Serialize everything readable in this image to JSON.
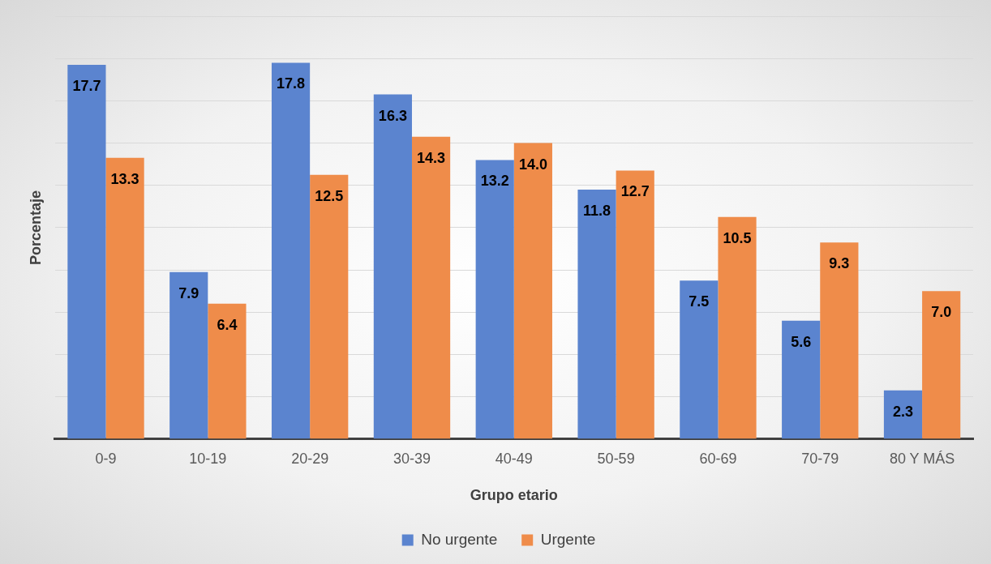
{
  "chart_data": {
    "type": "bar",
    "xlabel": "Grupo etario",
    "ylabel": "Porcentaje",
    "categories": [
      "0-9",
      "10-19",
      "20-29",
      "30-39",
      "40-49",
      "50-59",
      "60-69",
      "70-79",
      "80 Y MÁS"
    ],
    "series": [
      {
        "name": "No urgente",
        "color": "#5b84cf",
        "values": [
          17.7,
          7.9,
          17.8,
          16.3,
          13.2,
          11.8,
          7.5,
          5.6,
          2.3
        ],
        "value_labels": [
          "17.7",
          "7.9",
          "17.8",
          "16.3",
          "13.2",
          "11.8",
          "7.5",
          "5.6",
          "2.3"
        ]
      },
      {
        "name": "Urgente",
        "color": "#ef8c4a",
        "values": [
          13.3,
          6.4,
          12.5,
          14.3,
          14.0,
          12.7,
          10.5,
          9.3,
          7.0
        ],
        "value_labels": [
          "13.3",
          "6.4",
          "12.5",
          "14.3",
          "14.0",
          "12.7",
          "10.5",
          "9.3",
          "7.0"
        ]
      }
    ],
    "ylim": [
      0,
      20
    ],
    "yticks": [
      {
        "value": 0,
        "label": null
      },
      {
        "value": 2,
        "label": null
      },
      {
        "value": 4,
        "label": null
      },
      {
        "value": 6,
        "label": null
      },
      {
        "value": 8,
        "label": null
      },
      {
        "value": 10,
        "label": null
      },
      {
        "value": 12,
        "label": null
      },
      {
        "value": 14,
        "label": null
      },
      {
        "value": 16,
        "label": null
      },
      {
        "value": 18,
        "label": null
      },
      {
        "value": 20,
        "label": null
      }
    ],
    "tick_labels": "x",
    "grid": "y",
    "legend": "bottom"
  }
}
